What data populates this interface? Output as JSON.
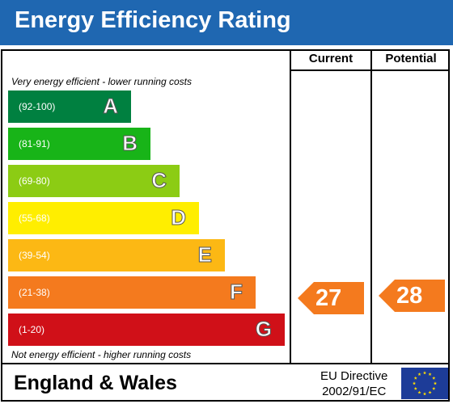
{
  "title": "Energy Efficiency Rating",
  "columns": {
    "current": "Current",
    "potential": "Potential"
  },
  "top_note": "Very energy efficient - lower running costs",
  "bottom_note": "Not energy efficient - higher running costs",
  "bands": [
    {
      "range": "(92-100)",
      "letter": "A",
      "color": "#008040"
    },
    {
      "range": "(81-91)",
      "letter": "B",
      "color": "#18b418"
    },
    {
      "range": "(69-80)",
      "letter": "C",
      "color": "#8ccc14"
    },
    {
      "range": "(55-68)",
      "letter": "D",
      "color": "#ffee00"
    },
    {
      "range": "(39-54)",
      "letter": "E",
      "color": "#fcb814"
    },
    {
      "range": "(21-38)",
      "letter": "F",
      "color": "#f47a1e"
    },
    {
      "range": "(1-20)",
      "letter": "G",
      "color": "#d01018"
    }
  ],
  "ratings": {
    "current": {
      "value": "27",
      "color": "#f47a1e"
    },
    "potential": {
      "value": "28",
      "color": "#f47a1e"
    }
  },
  "footer": {
    "region": "England & Wales",
    "directive_line1": "EU Directive",
    "directive_line2": "2002/91/EC",
    "flag_icon": "eu-flag-icon"
  }
}
